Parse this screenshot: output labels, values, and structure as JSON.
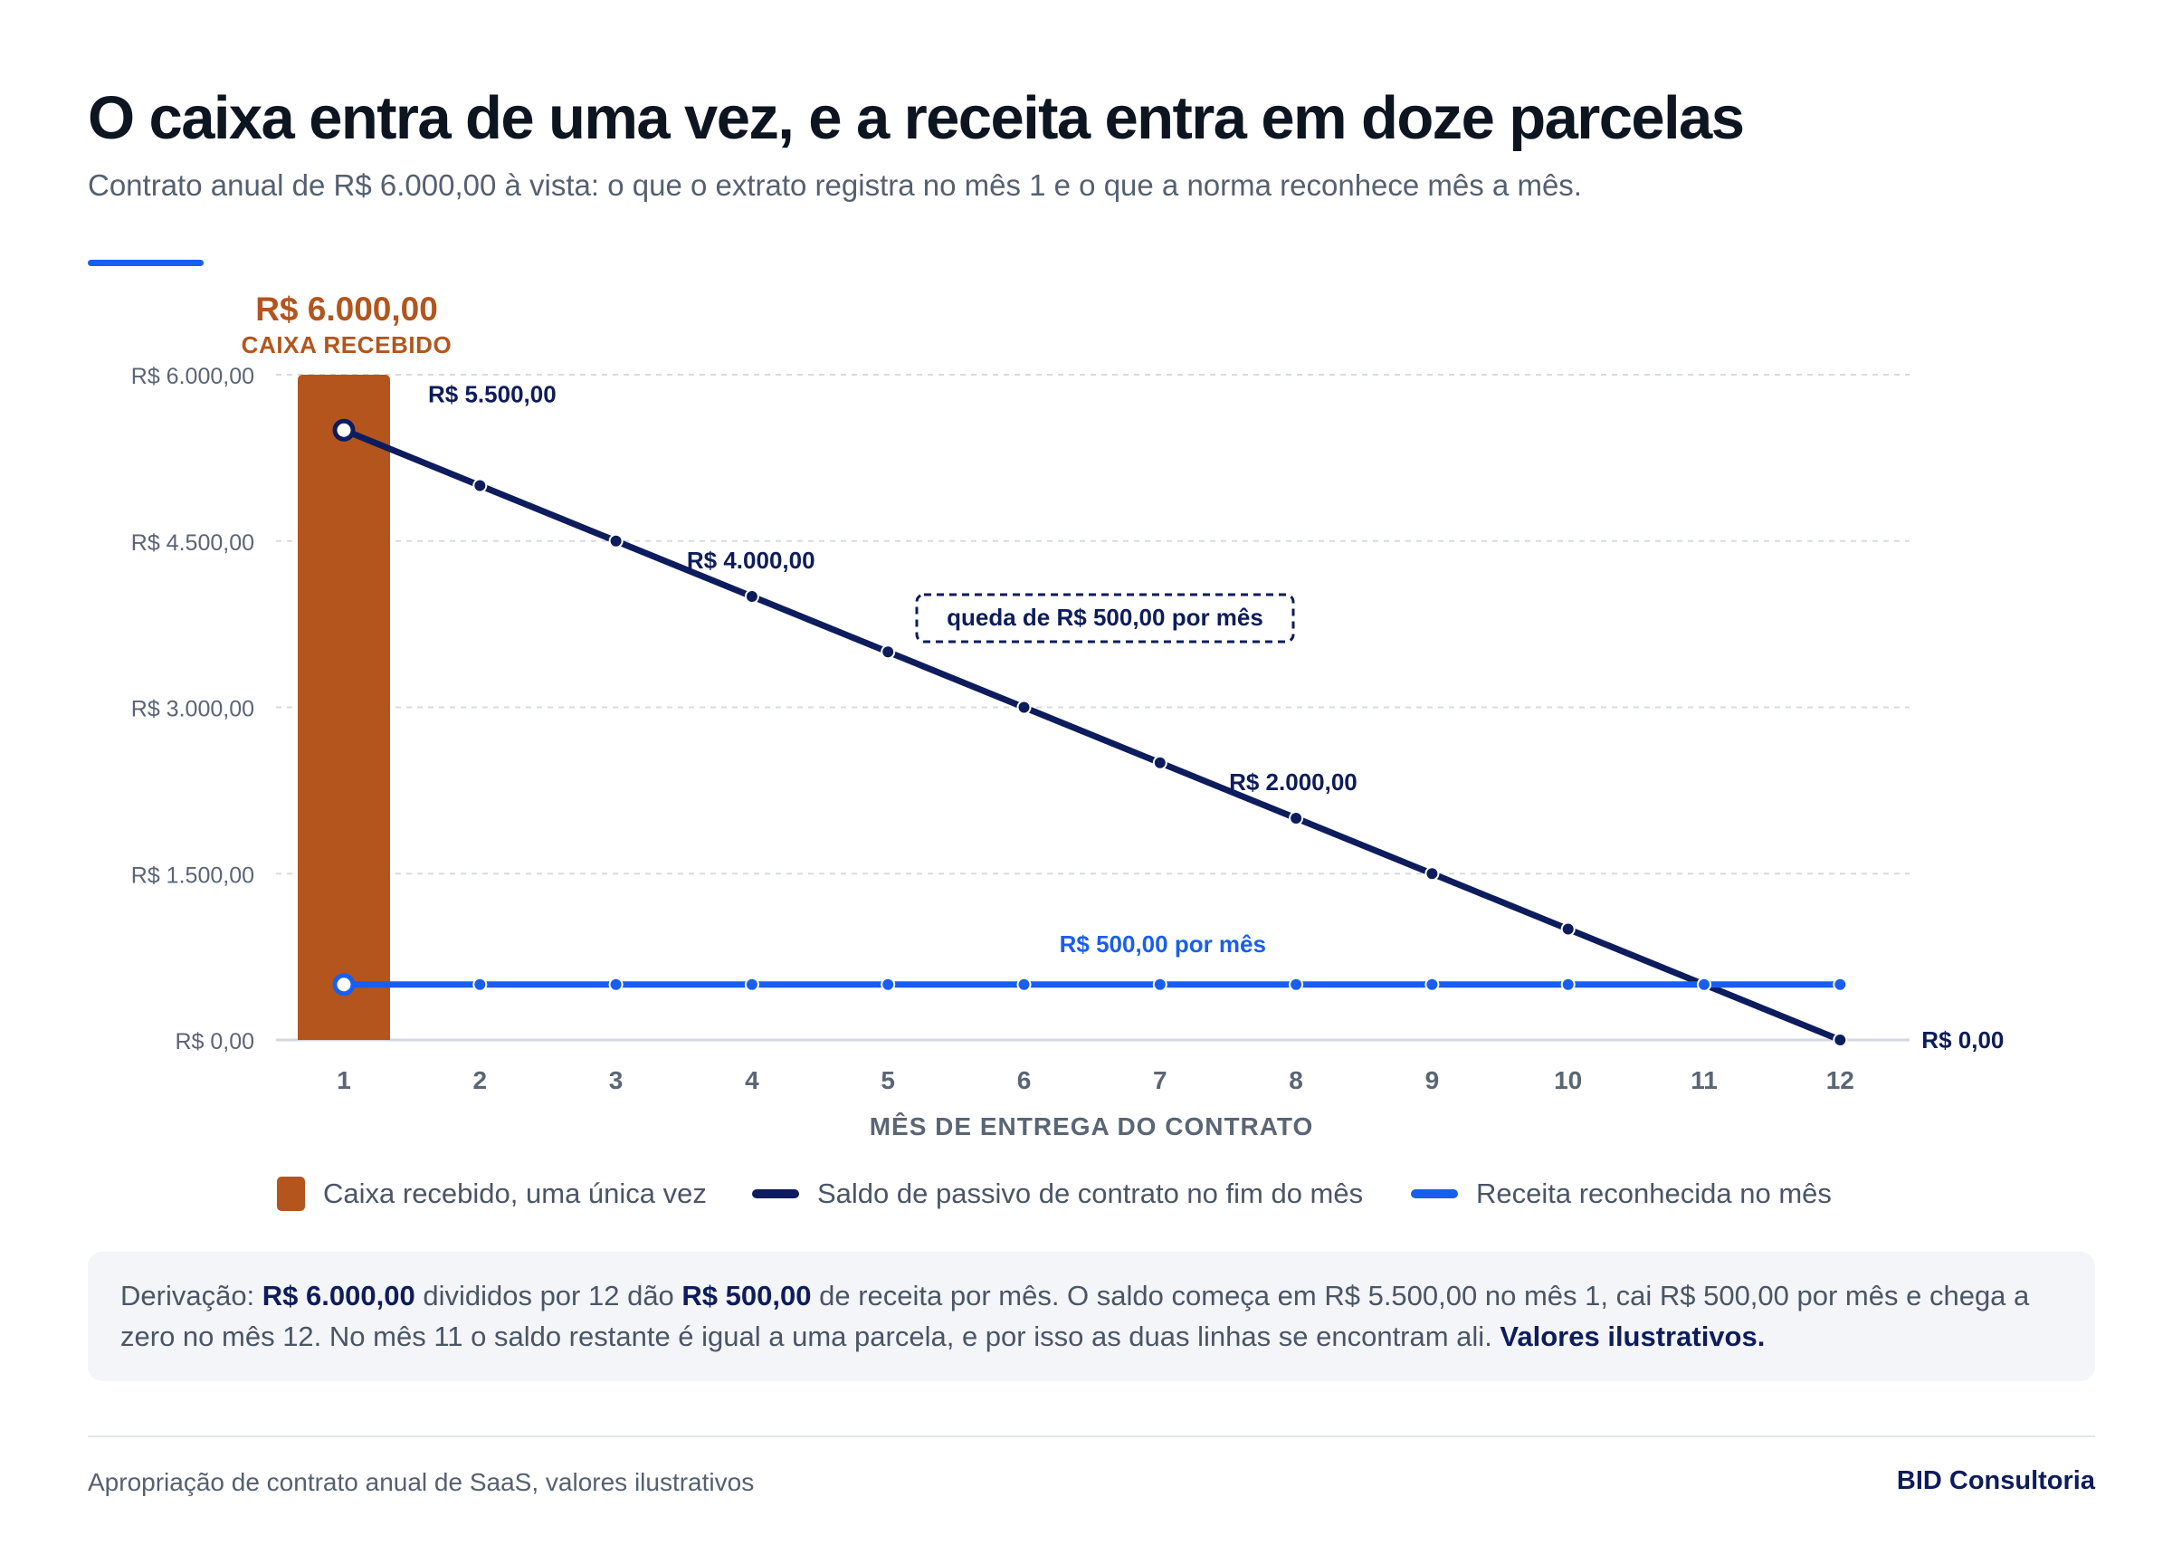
{
  "header": {
    "title": "O caixa entra de uma vez, e a receita entra em doze parcelas",
    "subtitle": "Contrato anual de R$ 6.000,00 à vista: o que o extrato registra no mês 1 e o que a norma reconhece mês a mês."
  },
  "colors": {
    "cash": "#b3551d",
    "liability": "#0d1c5c",
    "revenue": "#1a5ef0",
    "accent": "#1a5ef0",
    "grid": "#d7dbe2"
  },
  "chart_data": {
    "type": "bar+line",
    "xlabel": "MÊS DE ENTREGA DO CONTRATO",
    "categories": [
      "1",
      "2",
      "3",
      "4",
      "5",
      "6",
      "7",
      "8",
      "9",
      "10",
      "11",
      "12"
    ],
    "ylim": [
      0,
      6000
    ],
    "yticks": [
      0,
      1500,
      3000,
      4500,
      6000
    ],
    "ytick_labels": [
      "R$ 0,00",
      "R$ 1.500,00",
      "R$ 3.000,00",
      "R$ 4.500,00",
      "R$ 6.000,00"
    ],
    "grid": true,
    "legend_position": "bottom",
    "series": [
      {
        "name": "Caixa recebido, uma única vez",
        "type": "bar",
        "x": [
          "1"
        ],
        "values": [
          6000
        ],
        "label_value": "R$ 6.000,00",
        "label_caption": "CAIXA RECEBIDO"
      },
      {
        "name": "Saldo de passivo de contrato no fim do mês",
        "type": "line",
        "values": [
          5500,
          5000,
          4500,
          4000,
          3500,
          3000,
          2500,
          2000,
          1500,
          1000,
          500,
          0
        ]
      },
      {
        "name": "Receita reconhecida no mês",
        "type": "line",
        "values": [
          500,
          500,
          500,
          500,
          500,
          500,
          500,
          500,
          500,
          500,
          500,
          500
        ]
      }
    ],
    "annotations": [
      {
        "text": "R$ 5.500,00",
        "series": "liability",
        "x": "1",
        "y": 5500
      },
      {
        "text": "R$ 4.000,00",
        "series": "liability",
        "x": "4",
        "y": 4000
      },
      {
        "text": "R$ 2.000,00",
        "series": "liability",
        "x": "8",
        "y": 2000
      },
      {
        "text": "R$ 0,00",
        "series": "liability",
        "x": "12",
        "y": 0
      },
      {
        "text": "R$ 500,00 por mês",
        "series": "revenue",
        "x": "7",
        "y": 500
      },
      {
        "text": "queda de R$ 500,00 por mês",
        "series": "liability",
        "boxed": true
      }
    ]
  },
  "legend": {
    "cash": "Caixa recebido, uma única vez",
    "liability": "Saldo de passivo de contrato no fim do mês",
    "revenue": "Receita reconhecida no mês"
  },
  "note": {
    "prefix": "Derivação: ",
    "total": "R$ 6.000,00",
    "mid1": " divididos por 12 dão ",
    "monthly": "R$ 500,00",
    "mid2": " de receita por mês. O saldo começa em R$ 5.500,00 no mês 1, cai R$ 500,00 por mês e chega a zero no mês 12. No mês 11 o saldo restante é igual a uma parcela, e por isso as duas linhas se encontram ali. ",
    "emphasis": "Valores ilustrativos."
  },
  "footer": {
    "source": "Apropriação de contrato anual de SaaS, valores ilustrativos",
    "brand": "BID Consultoria"
  }
}
